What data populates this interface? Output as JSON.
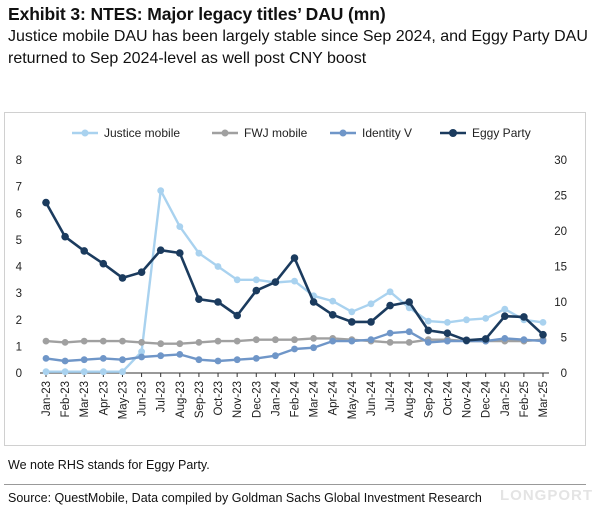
{
  "header": {
    "title": "Exhibit 3: NTES: Major legacy titles’ DAU (mn)",
    "subtitle": "Justice mobile DAU has been largely stable since Sep 2024, and Eggy Party DAU returned to Sep 2024-level as well post CNY boost"
  },
  "footer": {
    "note": "We note RHS stands for Eggy Party.",
    "source": "Source: QuestMobile, Data compiled by Goldman Sachs Global Investment Research",
    "watermark": "LONGPORT"
  },
  "chart_data": {
    "type": "line",
    "categories": [
      "Jan-23",
      "Feb-23",
      "Mar-23",
      "Apr-23",
      "May-23",
      "Jun-23",
      "Jul-23",
      "Aug-23",
      "Sep-23",
      "Oct-23",
      "Nov-23",
      "Dec-23",
      "Jan-24",
      "Feb-24",
      "Mar-24",
      "Apr-24",
      "May-24",
      "Jun-24",
      "Jul-24",
      "Aug-24",
      "Sep-24",
      "Oct-24",
      "Nov-24",
      "Dec-24",
      "Jan-25",
      "Feb-25",
      "Mar-25"
    ],
    "x_tick_labels": [
      "Jan-23",
      "Mar-23",
      "May-23",
      "Jul-23",
      "Sep-23",
      "Nov-23",
      "Jan-24",
      "Mar-24",
      "May-24",
      "Jul-24",
      "Sep-24",
      "Nov-24",
      "Jan-25",
      "Mar-25"
    ],
    "x_tick_labels_odd": [
      "Feb-23",
      "Apr-23",
      "Jun-23",
      "Aug-23",
      "Oct-23",
      "Dec-23",
      "Feb-24",
      "Apr-24",
      "Jun-24",
      "Aug-24",
      "Oct-24",
      "Dec-24",
      "Feb-25"
    ],
    "y_left": {
      "min": 0,
      "max": 8,
      "ticks": [
        "0",
        "1",
        "2",
        "3",
        "4",
        "5",
        "6",
        "7",
        "8"
      ]
    },
    "y_right": {
      "min": 0,
      "max": 30,
      "ticks": [
        "0",
        "5",
        "10",
        "15",
        "20",
        "25",
        "30"
      ]
    },
    "legend_position": "top",
    "grid": false,
    "series": [
      {
        "name": "Justice mobile",
        "axis": "left",
        "color": "#a9d2ef",
        "values": [
          0.05,
          0.05,
          0.05,
          0.05,
          0.05,
          0.8,
          6.85,
          5.5,
          4.5,
          4.0,
          3.5,
          3.5,
          3.4,
          3.45,
          2.9,
          2.7,
          2.3,
          2.6,
          3.05,
          2.45,
          1.95,
          1.9,
          2.0,
          2.05,
          2.4,
          2.0,
          1.9
        ]
      },
      {
        "name": "FWJ mobile",
        "axis": "left",
        "color": "#a0a0a0",
        "values": [
          1.2,
          1.15,
          1.2,
          1.2,
          1.2,
          1.15,
          1.1,
          1.1,
          1.15,
          1.2,
          1.2,
          1.25,
          1.25,
          1.25,
          1.3,
          1.3,
          1.25,
          1.2,
          1.15,
          1.15,
          1.25,
          1.25,
          1.2,
          1.2,
          1.2,
          1.2,
          1.25
        ]
      },
      {
        "name": "Identity V",
        "axis": "left",
        "color": "#6f96c8",
        "values": [
          0.55,
          0.45,
          0.5,
          0.55,
          0.5,
          0.6,
          0.65,
          0.7,
          0.5,
          0.45,
          0.5,
          0.55,
          0.65,
          0.9,
          0.95,
          1.2,
          1.2,
          1.25,
          1.5,
          1.55,
          1.15,
          1.2,
          1.2,
          1.2,
          1.3,
          1.25,
          1.2
        ]
      },
      {
        "name": "Eggy Party",
        "axis": "right",
        "color": "#1b3b5e",
        "values": [
          24.0,
          19.2,
          17.2,
          15.4,
          13.4,
          14.2,
          17.3,
          16.9,
          10.4,
          10.0,
          8.1,
          11.6,
          12.8,
          16.2,
          10.0,
          8.2,
          7.2,
          7.2,
          9.5,
          10.0,
          6.0,
          5.6,
          4.6,
          4.8,
          8.0,
          7.9,
          5.4
        ]
      }
    ]
  }
}
